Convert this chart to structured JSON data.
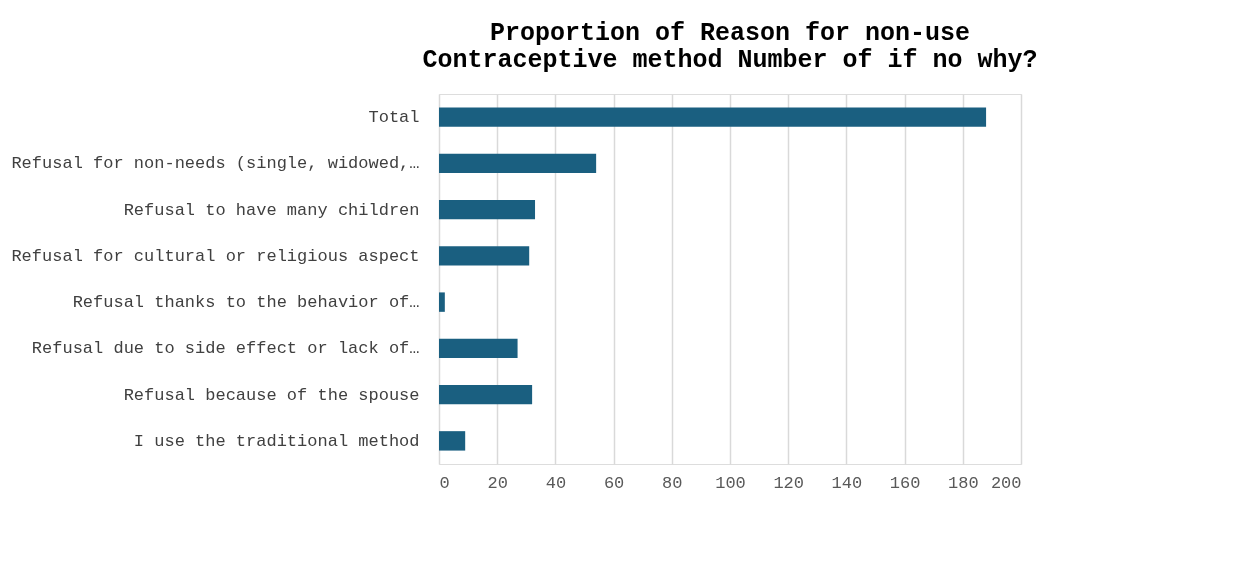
{
  "chart_data": {
    "type": "bar",
    "orientation": "horizontal",
    "title": [
      "Proportion of Reason for non-use",
      "Contraceptive method Number of if no why?"
    ],
    "categories": [
      "Total",
      "Refusal for non-needs (single, widowed,…",
      "Refusal to have many children",
      "Refusal for cultural or religious aspect",
      "Refusal thanks to the behavior of…",
      "Refusal due to side effect or lack of…",
      "Refusal because of the spouse",
      "I use the traditional method"
    ],
    "values": [
      188,
      54,
      33,
      31,
      2,
      27,
      32,
      9
    ],
    "color": "#1a5f80",
    "xlim": [
      0,
      200
    ],
    "xticks": [
      0,
      20,
      40,
      60,
      80,
      100,
      120,
      140,
      160,
      180,
      200
    ],
    "grid": "x"
  }
}
